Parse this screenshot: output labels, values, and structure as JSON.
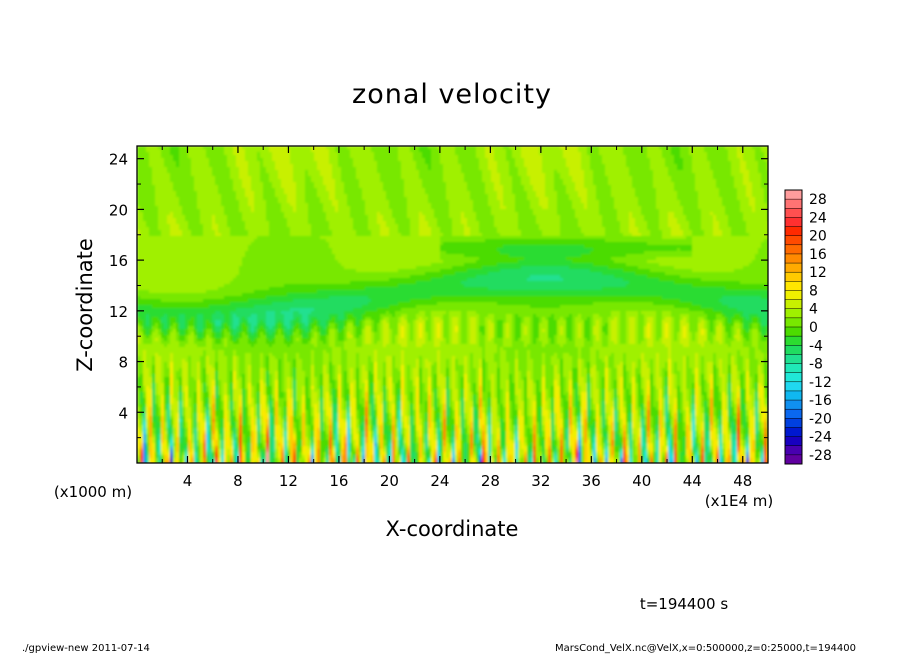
{
  "chart_data": {
    "type": "heatmap",
    "title": "zonal velocity",
    "xlabel": "X-coordinate",
    "ylabel": "Z-coordinate",
    "x_unit_note": "(x1E4 m)",
    "y_unit_note": "(x1000 m)",
    "xlim": [
      0,
      50
    ],
    "ylim": [
      0,
      25
    ],
    "x_ticks": [
      4,
      8,
      12,
      16,
      20,
      24,
      28,
      32,
      36,
      40,
      44,
      48
    ],
    "y_ticks": [
      4,
      8,
      12,
      16,
      20,
      24
    ],
    "colorbar": {
      "labels": [
        28,
        24,
        20,
        16,
        12,
        8,
        4,
        0,
        -4,
        -8,
        -12,
        -16,
        -20,
        -24,
        -28
      ],
      "levels_high_to_low": [
        30,
        28,
        26,
        24,
        22,
        20,
        18,
        16,
        14,
        12,
        10,
        8,
        6,
        4,
        2,
        0,
        -2,
        -4,
        -6,
        -8,
        -10,
        -12,
        -14,
        -16,
        -18,
        -20,
        -22,
        -24,
        -26,
        -28,
        -30
      ],
      "colors_high_to_low": [
        "#ff9c9c",
        "#ff7373",
        "#ff5050",
        "#ff3030",
        "#ff2a00",
        "#ff4a00",
        "#ff6a00",
        "#ff8a00",
        "#ffaa00",
        "#ffca00",
        "#ffe600",
        "#f0f000",
        "#c8f000",
        "#a0f000",
        "#78e800",
        "#4cdc00",
        "#2cdc30",
        "#20dc60",
        "#20e090",
        "#20e8b8",
        "#20e8d8",
        "#20d8f0",
        "#10b8f0",
        "#1090f0",
        "#0a68f0",
        "#0040e0",
        "#0018d0",
        "#1800c0",
        "#4800b0",
        "#6000a0"
      ]
    },
    "field_description": "velocity mostly 0 to +4 above z=12; band of -4 to -8 near z=12-16; alternating -12 to +12 columns below z=8"
  },
  "annotations": {
    "time": "t=194400 s",
    "footer_left": "./gpview-new   2011-07-14",
    "footer_right": "MarsCond_VelX.nc@VelX,x=0:500000,z=0:25000,t=194400"
  },
  "colors": {
    "frame": "#000000",
    "background": "#ffffff"
  }
}
